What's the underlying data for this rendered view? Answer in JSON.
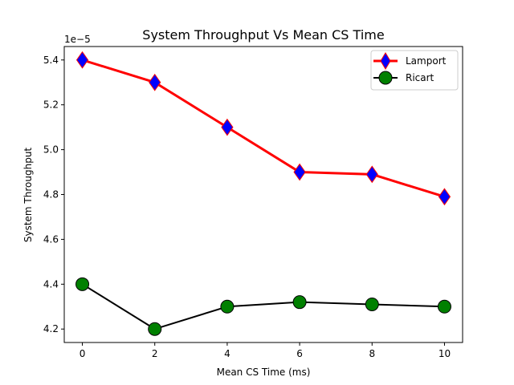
{
  "chart_data": {
    "type": "line",
    "title": "System Throughput Vs Mean CS Time",
    "xlabel": "Mean CS Time (ms)",
    "ylabel": "System Throughput",
    "y_offset_label": "1e−5",
    "x": [
      0,
      2,
      4,
      6,
      8,
      10
    ],
    "xticks": [
      0,
      2,
      4,
      6,
      8,
      10
    ],
    "yticks": [
      4.2,
      4.4,
      4.6,
      4.8,
      5.0,
      5.2,
      5.4
    ],
    "ytick_labels": [
      "4.2",
      "4.4",
      "4.6",
      "4.8",
      "5.0",
      "5.2",
      "5.4"
    ],
    "xlim": [
      -0.5,
      10.5
    ],
    "ylim": [
      4.14,
      5.46
    ],
    "y_scale_exponent": -5,
    "grid": false,
    "legend_position": "top-right",
    "series": [
      {
        "name": "Lamport",
        "values": [
          5.4,
          5.3,
          5.1,
          4.9,
          4.89,
          4.79
        ],
        "line_color": "#ff0000",
        "marker": "diamond",
        "marker_fill": "#0000ff",
        "marker_edge": "#ff0000"
      },
      {
        "name": "Ricart",
        "values": [
          4.4,
          4.2,
          4.3,
          4.32,
          4.31,
          4.3
        ],
        "line_color": "#000000",
        "marker": "circle",
        "marker_fill": "#008000",
        "marker_edge": "#000000"
      }
    ]
  }
}
